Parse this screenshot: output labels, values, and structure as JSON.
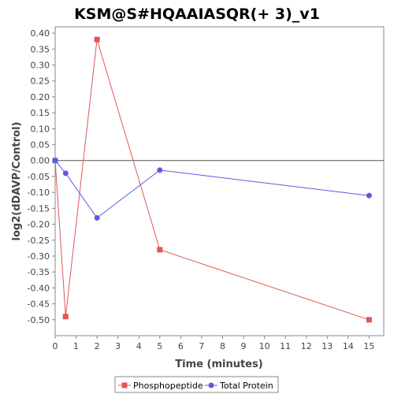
{
  "chart_data": {
    "type": "line",
    "title": "KSM@S#HQAAIASQR(+ 3)_v1",
    "xlabel": "Time (minutes)",
    "ylabel": "log2(dDAVP/Control)",
    "xlim": [
      0,
      15.7
    ],
    "ylim": [
      -0.55,
      0.42
    ],
    "x_ticks": [
      "0",
      "1",
      "2",
      "3",
      "4",
      "5",
      "6",
      "7",
      "8",
      "9",
      "10",
      "11",
      "12",
      "13",
      "14",
      "15"
    ],
    "y_ticks": [
      "0.40",
      "0.35",
      "0.30",
      "0.25",
      "0.20",
      "0.15",
      "0.10",
      "0.05",
      "0.00",
      "-0.05",
      "-0.10",
      "-0.15",
      "-0.20",
      "-0.25",
      "-0.30",
      "-0.35",
      "-0.40",
      "-0.45",
      "-0.50"
    ],
    "grid": false,
    "zero_line": true,
    "legend_position": "bottom",
    "series": [
      {
        "name": "Phosphopeptide",
        "color": "#e05757",
        "marker": "square",
        "x": [
          0,
          0.5,
          2,
          5,
          15
        ],
        "y": [
          0.0,
          -0.49,
          0.38,
          -0.28,
          -0.5
        ]
      },
      {
        "name": "Total Protein",
        "color": "#5b5be6",
        "marker": "circle",
        "x": [
          0,
          0.5,
          2,
          5,
          15
        ],
        "y": [
          0.0,
          -0.04,
          -0.18,
          -0.03,
          -0.11
        ]
      }
    ]
  }
}
